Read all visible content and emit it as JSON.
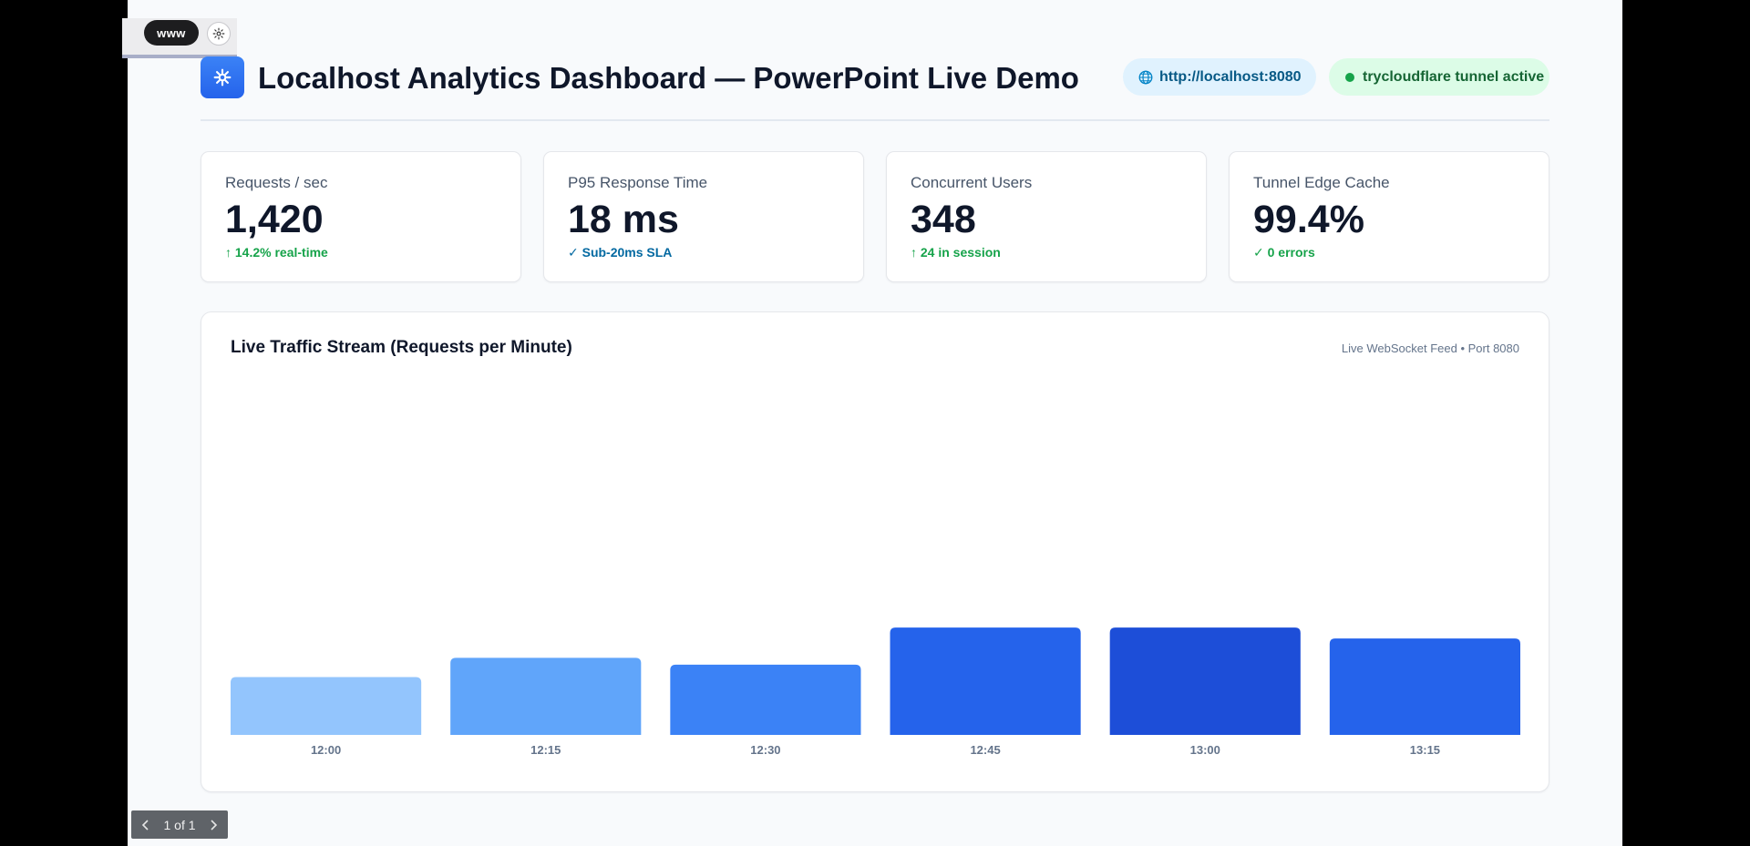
{
  "addin": {
    "web_label": "www"
  },
  "header": {
    "title": "Localhost Analytics Dashboard — PowerPoint Live Demo",
    "url": "http://localhost:8080",
    "tunnel_status": "trycloudflare tunnel active"
  },
  "stats": [
    {
      "label": "Requests / sec",
      "value": "1,420",
      "note": "↑ 14.2% real-time"
    },
    {
      "label": "P95 Response Time",
      "value": "18 ms",
      "note": "✓ Sub-20ms SLA"
    },
    {
      "label": "Concurrent Users",
      "value": "348",
      "note": "↑ 24 in session"
    },
    {
      "label": "Tunnel Edge Cache",
      "value": "99.4%",
      "note": "✓ 0 errors"
    }
  ],
  "chart": {
    "title": "Live Traffic Stream (Requests per Minute)",
    "subtitle": "Live WebSocket Feed • Port 8080"
  },
  "chart_data": {
    "type": "bar",
    "categories": [
      "12:00",
      "12:15",
      "12:30",
      "12:45",
      "13:00",
      "13:15"
    ],
    "values": [
      42,
      56,
      51,
      78,
      78,
      70
    ],
    "ylim": [
      0,
      250
    ],
    "grid": false,
    "bar_colors": [
      "#93c5fd",
      "#60a5fa",
      "#3b82f6",
      "#2563eb",
      "#1d4ed8",
      "#2563eb"
    ]
  },
  "colors": {
    "accent": "#2563eb",
    "title_text": "#0f172a",
    "success": "#16a34a",
    "info": "#0369a1"
  },
  "footer": {
    "slide_indicator": "1 of 1"
  }
}
